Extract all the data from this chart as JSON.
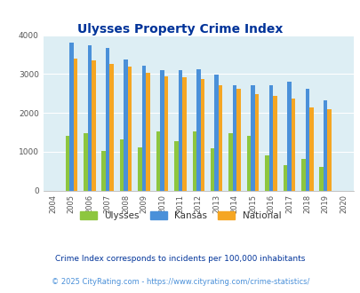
{
  "title": "Ulysses Property Crime Index",
  "years": [
    2004,
    2005,
    2006,
    2007,
    2008,
    2009,
    2010,
    2011,
    2012,
    2013,
    2014,
    2015,
    2016,
    2017,
    2018,
    2019,
    2020
  ],
  "ulysses": [
    0,
    1400,
    1470,
    1010,
    1320,
    1100,
    1530,
    1260,
    1530,
    1090,
    1480,
    1400,
    900,
    660,
    820,
    600,
    0
  ],
  "kansas": [
    0,
    3800,
    3750,
    3670,
    3380,
    3210,
    3100,
    3090,
    3130,
    2980,
    2720,
    2720,
    2700,
    2800,
    2630,
    2320,
    0
  ],
  "national": [
    0,
    3400,
    3340,
    3260,
    3200,
    3020,
    2940,
    2910,
    2870,
    2700,
    2610,
    2490,
    2440,
    2370,
    2140,
    2100,
    0
  ],
  "ulysses_color": "#8dc63f",
  "kansas_color": "#4a90d9",
  "national_color": "#f5a623",
  "bg_color": "#ddeef4",
  "ylabel_max": 4000,
  "yticks": [
    0,
    1000,
    2000,
    3000,
    4000
  ],
  "footnote1": "Crime Index corresponds to incidents per 100,000 inhabitants",
  "footnote2": "© 2025 CityRating.com - https://www.cityrating.com/crime-statistics/",
  "legend_labels": [
    "Ulysses",
    "Kansas",
    "National"
  ],
  "title_color": "#003399",
  "footnote1_color": "#003399",
  "footnote2_color": "#4a90d9"
}
